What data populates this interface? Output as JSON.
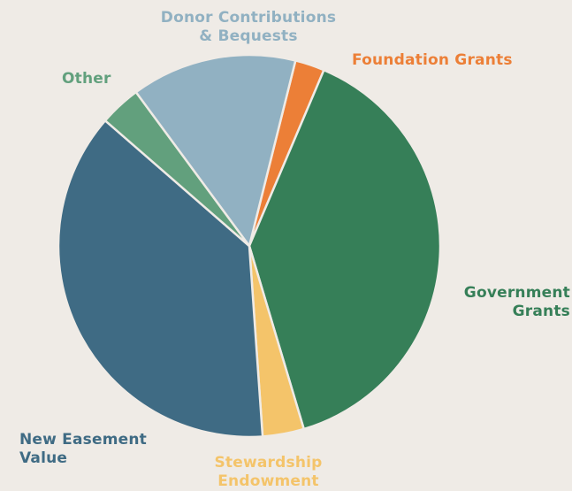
{
  "chart_data": {
    "type": "pie",
    "title": "",
    "slices": [
      {
        "label": "Foundation Grants",
        "value": 2.5,
        "color": "#ec7f37"
      },
      {
        "label": "Government\nGrants",
        "value": 39.0,
        "color": "#367f58"
      },
      {
        "label": "Stewardship\nEndowment",
        "value": 3.5,
        "color": "#f4c46a"
      },
      {
        "label": "New Easement\nValue",
        "value": 37.5,
        "color": "#3f6b84"
      },
      {
        "label": "Other",
        "value": 3.5,
        "color": "#62a07d"
      },
      {
        "label": "Donor Contributions\n& Bequests",
        "value": 14.0,
        "color": "#91b1c2"
      }
    ]
  }
}
